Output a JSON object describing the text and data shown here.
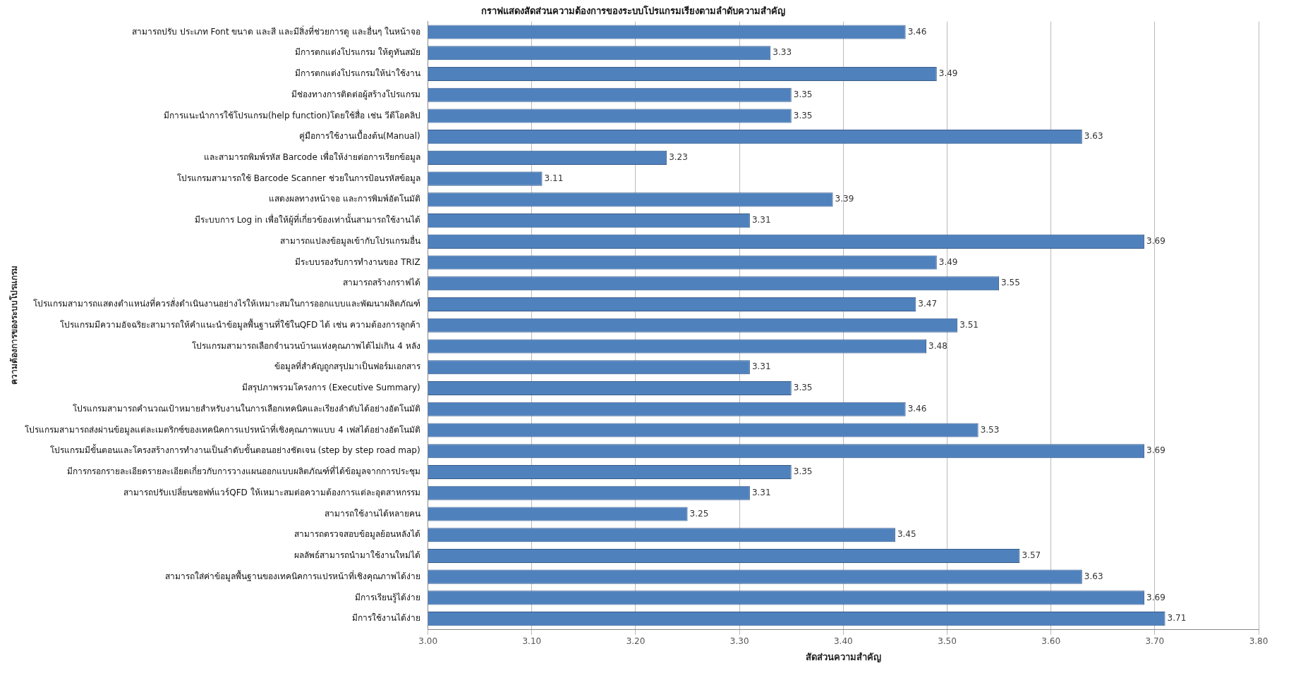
{
  "chart_data": {
    "type": "bar",
    "orientation": "horizontal",
    "title": "กราฟแสดงสัดส่วนความต้องการของระบบโปรแกรมเรียงตามลำดับความสำคัญ",
    "xlabel": "สัดส่วนความสำคัญ",
    "ylabel": "ความต้องการของระบบโปรแกรม",
    "categories": [
      "สามารถปรับ ประเภท Font ขนาด และสี และมีสิ่งที่ช่วยการดู และอื่นๆ ในหน้าจอ",
      "มีการตกแต่งโปรแกรม ให้ดูทันสมัย",
      "มีการตกแต่งโปรแกรมให้น่าใช้งาน",
      "มีช่องทางการติดต่อผู้สร้างโปรแกรม",
      "มีการแนะนำการใช้โปรแกรม(help function)โดยใช้สื่อ เช่น วีดีโอคลิป",
      "คู่มือการใช้งานเบื้องต้น(Manual)",
      "และสามารถพิมพ์รหัส Barcode เพื่อให้ง่ายต่อการเรียกข้อมูล",
      "โปรแกรมสามารถใช้ Barcode Scanner ช่วยในการป้อนรหัสข้อมูล",
      "แสดงผลทางหน้าจอ และการพิมพ์อัตโนมัติ",
      "มีระบบการ Log in เพื่อให้ผู้ที่เกี่ยวข้องเท่านั้นสามารถใช้งานได้",
      "สามารถแปลงข้อมูลเข้ากับโปรแกรมอื่น",
      "มีระบบรองรับการทำงานของ TRIZ",
      "สามารถสร้างกราฟได้",
      "โปรแกรมสามารถแสดงตำแหน่งที่ควรสั่งดำเนินงานอย่างไรให้เหมาะสมในการออกแบบและพัฒนาผลิตภัณฑ์",
      "โปรแกรมมีความอัจฉริยะสามารถให้คำแนะนำข้อมูลพื้นฐานที่ใช้ในQFD ได้ เช่น ความต้องการลูกค้า",
      "โปรแกรมสามารถเลือกจำนวนบ้านแห่งคุณภาพได้ไม่เกิน 4 หลัง",
      "ข้อมูลที่สำคัญถูกสรุปมาเป็นฟอร์มเอกสาร",
      "มีสรุปภาพรวมโครงการ (Executive Summary)",
      "โปรแกรมสามารถคำนวณเป้าหมายสำหรับงานในการเลือกเทคนิคและเรียงลำดับได้อย่างอัตโนมัติ",
      "โปรแกรมสามารถส่งผ่านข้อมูลแต่ละเมตริกซ์ของเทคนิคการแปรหน้าที่เชิงคุณภาพแบบ 4 เฟสได้อย่างอัตโนมัติ",
      "โปรแกรมมีขั้นตอนและโครงสร้างการทำงานเป็นลำดับขั้นตอนอย่างชัดเจน (step by step road map)",
      "มีการกรอกรายละเอียดรายละเอียดเกี่ยวกับการวางแผนออกแบบผลิตภัณฑ์ที่ได้ข้อมูลจากการประชุม",
      "สามารถปรับเปลี่ยนซอฟท์แวร์QFD ให้เหมาะสมต่อความต้องการแต่ละอุตสาหกรรม",
      "สามารถใช้งานได้หลายคน",
      "สามารถตรวจสอบข้อมูลย้อนหลังได้",
      "ผลลัพธ์สามารถนำมาใช้งานใหม่ได้",
      "สามารถใส่ค่าข้อมูลพื้นฐานของเทคนิคการแปรหน้าที่เชิงคุณภาพได้ง่าย",
      "มีการเรียนรู้ได้ง่าย",
      "มีการใช้งานได้ง่าย"
    ],
    "values": [
      3.46,
      3.33,
      3.49,
      3.35,
      3.35,
      3.63,
      3.23,
      3.11,
      3.39,
      3.31,
      3.69,
      3.49,
      3.55,
      3.47,
      3.51,
      3.48,
      3.31,
      3.35,
      3.46,
      3.53,
      3.69,
      3.35,
      3.31,
      3.25,
      3.45,
      3.57,
      3.63,
      3.69,
      3.71
    ],
    "color": "#4f81bd",
    "xlim": [
      3.0,
      3.8
    ],
    "xticks": [
      {
        "value": 3.0,
        "label": "3.00"
      },
      {
        "value": 3.1,
        "label": "3.10"
      },
      {
        "value": 3.2,
        "label": "3.20"
      },
      {
        "value": 3.3,
        "label": "3.30"
      },
      {
        "value": 3.4,
        "label": "3.40"
      },
      {
        "value": 3.5,
        "label": "3.50"
      },
      {
        "value": 3.6,
        "label": "3.60"
      },
      {
        "value": 3.7,
        "label": "3.70"
      },
      {
        "value": 3.8,
        "label": "3.80"
      }
    ],
    "grid": "x",
    "data_labels": true,
    "legend": false
  }
}
